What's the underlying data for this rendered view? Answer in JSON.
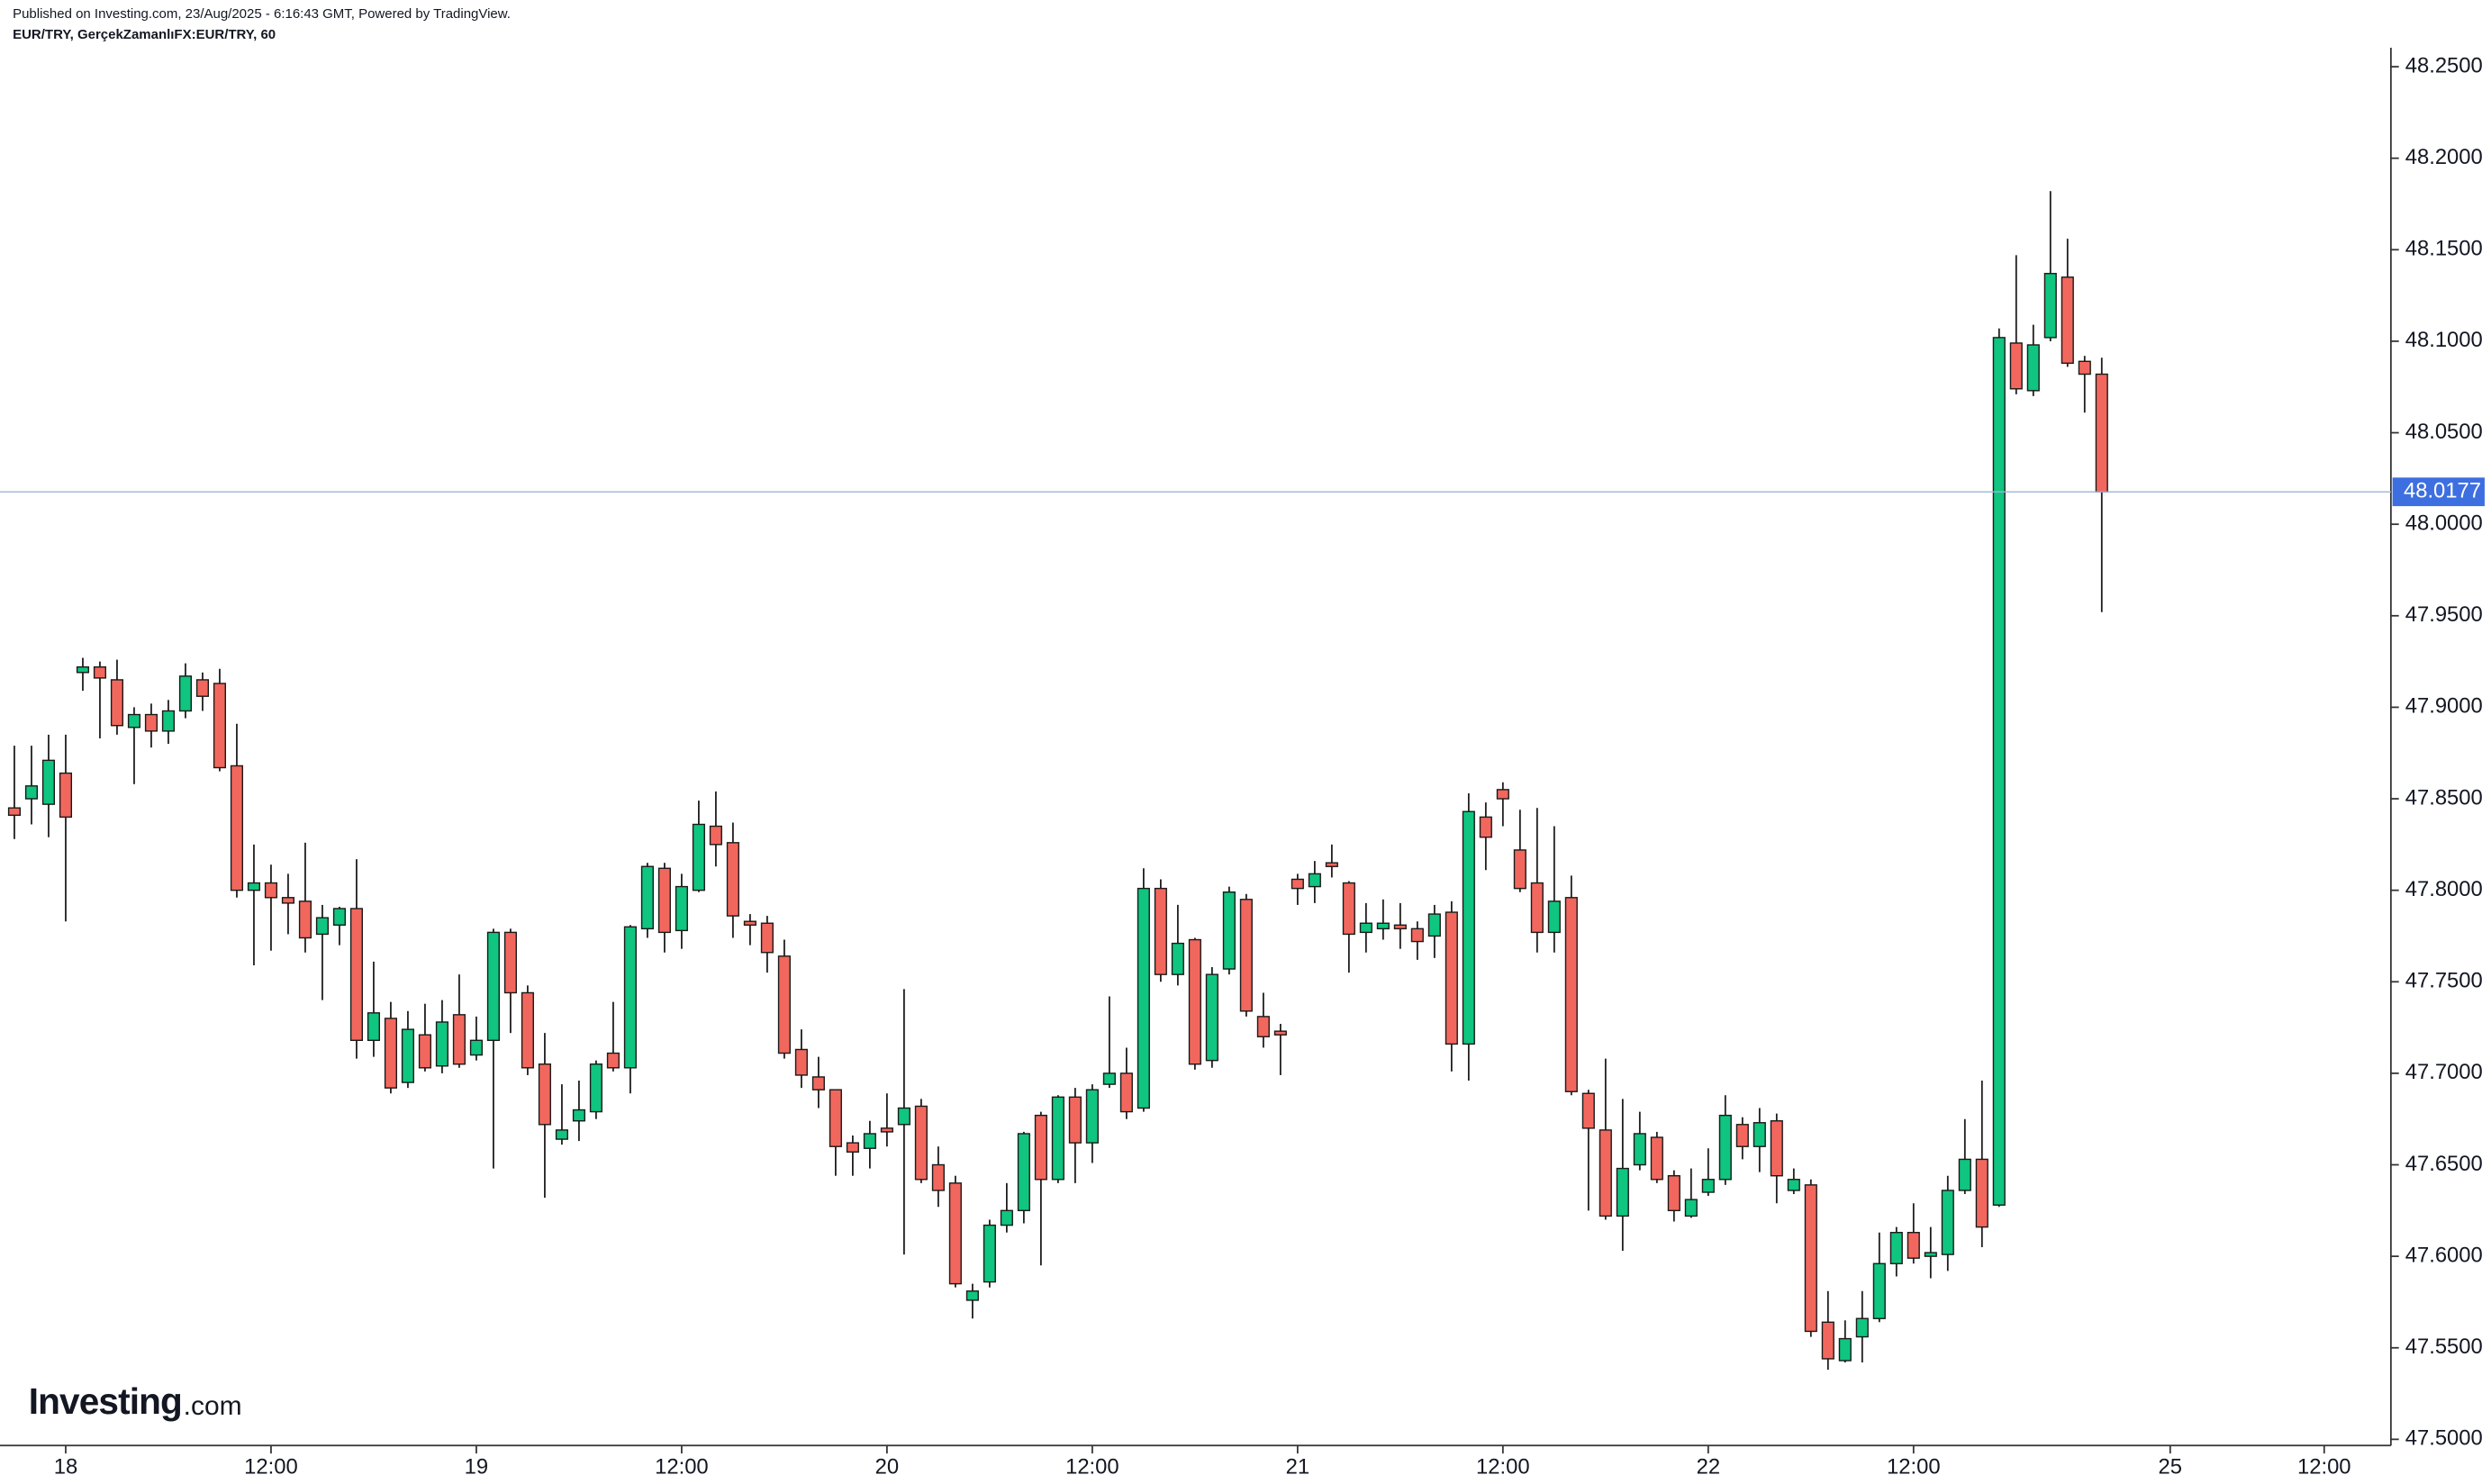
{
  "chart_data": {
    "type": "candlestick",
    "published_note": "Published on Investing.com, 23/Aug/2025 - 6:16:43 GMT, Powered by TradingView.",
    "title": "EUR/TRY, GerçekZamanlıFX:EUR/TRY, 60",
    "logo": {
      "name": "Investing",
      "suffix": ".com"
    },
    "up_color": "#0fc57f",
    "down_color": "#f2675d",
    "last_price_color": "#3d6fe0",
    "open": [
      47.845,
      47.85,
      47.847,
      47.864,
      47.919,
      47.922,
      47.915,
      47.889,
      47.896,
      47.887,
      47.898,
      47.915,
      47.913,
      47.868,
      47.8,
      47.804,
      47.796,
      47.794,
      47.776,
      47.781,
      47.79,
      47.718,
      47.73,
      47.695,
      47.721,
      47.704,
      47.732,
      47.71,
      47.718,
      47.777,
      47.744,
      47.705,
      47.664,
      47.674,
      47.679,
      47.711,
      47.703,
      47.779,
      47.812,
      47.778,
      47.8,
      47.835,
      47.826,
      47.783,
      47.782,
      47.764,
      47.713,
      47.698,
      47.691,
      47.662,
      47.659,
      47.67,
      47.672,
      47.682,
      47.65,
      47.64,
      47.576,
      47.586,
      47.617,
      47.625,
      47.677,
      47.642,
      47.687,
      47.662,
      47.694,
      47.7,
      47.681,
      47.801,
      47.754,
      47.773,
      47.707,
      47.757,
      47.795,
      47.731,
      47.723,
      47.806,
      47.802,
      47.815,
      47.804,
      47.777,
      47.779,
      47.781,
      47.779,
      47.775,
      47.788,
      47.716,
      47.84,
      47.855,
      47.822,
      47.804,
      47.777,
      47.796,
      47.689,
      47.669,
      47.622,
      47.65,
      47.665,
      47.644,
      47.622,
      47.635,
      47.642,
      47.672,
      47.66,
      47.674,
      47.636,
      47.639,
      47.564,
      47.543,
      47.556,
      47.566,
      47.596,
      47.613,
      47.6,
      47.601,
      47.636,
      47.653,
      47.628,
      48.099,
      48.073,
      48.102,
      48.135,
      48.089,
      48.082
    ],
    "high": [
      47.879,
      47.879,
      47.885,
      47.885,
      47.927,
      47.925,
      47.926,
      47.9,
      47.902,
      47.904,
      47.924,
      47.919,
      47.921,
      47.891,
      47.825,
      47.814,
      47.809,
      47.826,
      47.792,
      47.791,
      47.817,
      47.761,
      47.739,
      47.734,
      47.738,
      47.74,
      47.754,
      47.731,
      47.779,
      47.779,
      47.748,
      47.722,
      47.694,
      47.696,
      47.707,
      47.739,
      47.781,
      47.815,
      47.815,
      47.809,
      47.849,
      47.854,
      47.837,
      47.787,
      47.786,
      47.773,
      47.724,
      47.709,
      47.691,
      47.666,
      47.674,
      47.689,
      47.746,
      47.686,
      47.66,
      47.644,
      47.585,
      47.62,
      47.64,
      47.668,
      47.679,
      47.688,
      47.692,
      47.694,
      47.742,
      47.714,
      47.812,
      47.806,
      47.792,
      47.774,
      47.758,
      47.802,
      47.798,
      47.744,
      47.727,
      47.809,
      47.816,
      47.825,
      47.805,
      47.793,
      47.795,
      47.793,
      47.783,
      47.792,
      47.794,
      47.853,
      47.848,
      47.859,
      47.844,
      47.845,
      47.835,
      47.808,
      47.691,
      47.708,
      47.686,
      47.679,
      47.668,
      47.647,
      47.648,
      47.659,
      47.688,
      47.676,
      47.681,
      47.678,
      47.648,
      47.642,
      47.581,
      47.565,
      47.581,
      47.613,
      47.616,
      47.629,
      47.616,
      47.644,
      47.675,
      47.696,
      48.107,
      48.147,
      48.109,
      48.182,
      48.156,
      48.092,
      48.091
    ],
    "low": [
      47.828,
      47.836,
      47.829,
      47.783,
      47.909,
      47.883,
      47.885,
      47.858,
      47.878,
      47.88,
      47.894,
      47.898,
      47.865,
      47.796,
      47.759,
      47.767,
      47.776,
      47.766,
      47.74,
      47.77,
      47.708,
      47.709,
      47.689,
      47.692,
      47.701,
      47.7,
      47.703,
      47.707,
      47.648,
      47.722,
      47.699,
      47.632,
      47.661,
      47.663,
      47.675,
      47.701,
      47.689,
      47.774,
      47.766,
      47.768,
      47.799,
      47.813,
      47.774,
      47.77,
      47.755,
      47.708,
      47.692,
      47.681,
      47.644,
      47.644,
      47.648,
      47.66,
      47.601,
      47.64,
      47.627,
      47.583,
      47.566,
      47.583,
      47.613,
      47.618,
      47.595,
      47.64,
      47.64,
      47.651,
      47.692,
      47.675,
      47.679,
      47.75,
      47.748,
      47.702,
      47.703,
      47.754,
      47.731,
      47.714,
      47.699,
      47.792,
      47.793,
      47.807,
      47.755,
      47.766,
      47.773,
      47.768,
      47.762,
      47.763,
      47.701,
      47.696,
      47.811,
      47.835,
      47.799,
      47.766,
      47.766,
      47.688,
      47.625,
      47.62,
      47.603,
      47.647,
      47.64,
      47.619,
      47.621,
      47.633,
      47.639,
      47.653,
      47.646,
      47.629,
      47.634,
      47.556,
      47.538,
      47.542,
      47.542,
      47.564,
      47.589,
      47.596,
      47.588,
      47.592,
      47.634,
      47.605,
      47.627,
      48.071,
      48.07,
      48.1,
      48.086,
      48.061,
      47.952
    ],
    "close": [
      47.841,
      47.857,
      47.871,
      47.84,
      47.922,
      47.916,
      47.89,
      47.896,
      47.887,
      47.898,
      47.917,
      47.906,
      47.867,
      47.8,
      47.804,
      47.796,
      47.793,
      47.774,
      47.785,
      47.79,
      47.718,
      47.733,
      47.692,
      47.724,
      47.703,
      47.728,
      47.705,
      47.718,
      47.777,
      47.744,
      47.703,
      47.672,
      47.669,
      47.68,
      47.705,
      47.703,
      47.78,
      47.813,
      47.777,
      47.802,
      47.836,
      47.825,
      47.786,
      47.781,
      47.766,
      47.711,
      47.699,
      47.691,
      47.66,
      47.657,
      47.667,
      47.668,
      47.681,
      47.642,
      47.636,
      47.585,
      47.581,
      47.617,
      47.625,
      47.667,
      47.642,
      47.687,
      47.662,
      47.691,
      47.7,
      47.679,
      47.801,
      47.754,
      47.771,
      47.705,
      47.754,
      47.799,
      47.734,
      47.72,
      47.721,
      47.801,
      47.809,
      47.813,
      47.776,
      47.782,
      47.782,
      47.779,
      47.772,
      47.787,
      47.716,
      47.843,
      47.829,
      47.85,
      47.801,
      47.777,
      47.794,
      47.69,
      47.67,
      47.622,
      47.648,
      47.667,
      47.642,
      47.625,
      47.631,
      47.642,
      47.677,
      47.66,
      47.673,
      47.644,
      47.642,
      47.559,
      47.544,
      47.555,
      47.566,
      47.596,
      47.613,
      47.599,
      47.602,
      47.636,
      47.653,
      47.616,
      48.102,
      48.074,
      48.098,
      48.137,
      48.088,
      48.082,
      48.0177
    ],
    "xlim": [
      -0.84,
      138.9
    ],
    "xticks": [
      {
        "value": 3,
        "label": "18"
      },
      {
        "value": 15,
        "label": "12:00"
      },
      {
        "value": 27,
        "label": "19"
      },
      {
        "value": 39,
        "label": "12:00"
      },
      {
        "value": 51,
        "label": "20"
      },
      {
        "value": 63,
        "label": "12:00"
      },
      {
        "value": 75,
        "label": "21"
      },
      {
        "value": 87,
        "label": "12:00"
      },
      {
        "value": 99,
        "label": "22"
      },
      {
        "value": 111,
        "label": "12:00"
      },
      {
        "value": 126,
        "label": "25"
      },
      {
        "value": 135,
        "label": "12:00"
      }
    ],
    "ylim": [
      47.4966,
      48.2604
    ],
    "yticks": [
      {
        "value": 47.5,
        "label": "47.5000"
      },
      {
        "value": 47.55,
        "label": "47.5500"
      },
      {
        "value": 47.6,
        "label": "47.6000"
      },
      {
        "value": 47.65,
        "label": "47.6500"
      },
      {
        "value": 47.7,
        "label": "47.7000"
      },
      {
        "value": 47.75,
        "label": "47.7500"
      },
      {
        "value": 47.8,
        "label": "47.8000"
      },
      {
        "value": 47.85,
        "label": "47.8500"
      },
      {
        "value": 47.9,
        "label": "47.9000"
      },
      {
        "value": 47.95,
        "label": "47.9500"
      },
      {
        "value": 48.0,
        "label": "48.0000"
      },
      {
        "value": 48.05,
        "label": "48.0500"
      },
      {
        "value": 48.1,
        "label": "48.1000"
      },
      {
        "value": 48.15,
        "label": "48.1500"
      },
      {
        "value": 48.2,
        "label": "48.2000"
      },
      {
        "value": 48.25,
        "label": "48.2500"
      }
    ],
    "grid": false
  }
}
